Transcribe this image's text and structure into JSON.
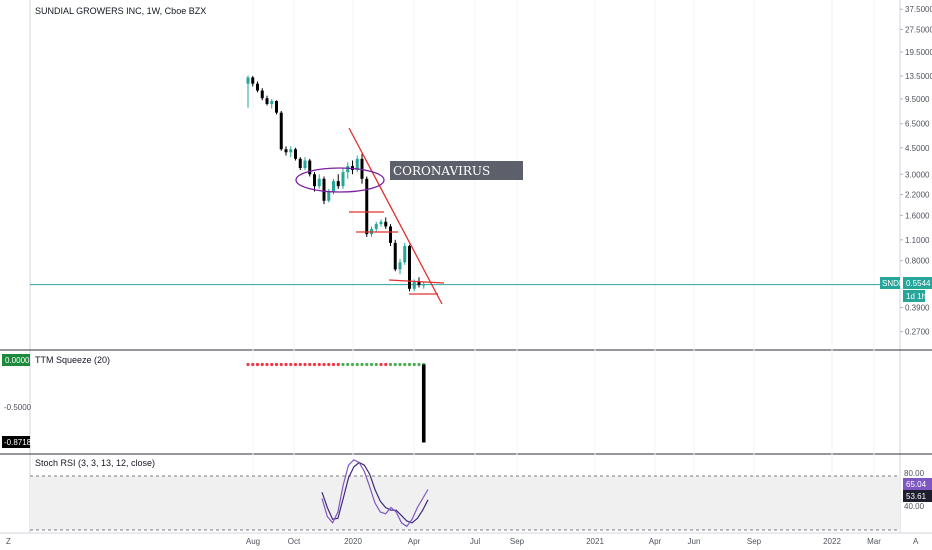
{
  "header": {
    "title": "SUNDIAL GROWERS INC, 1W, Cboe BZX"
  },
  "colors": {
    "up": "#26a69a",
    "down": "#000000",
    "trendline": "#e0312f",
    "ellipse": "#7b1fa2",
    "price_line": "#26a69a",
    "rsi_k": "#7e57c2",
    "rsi_d": "#3f2a78",
    "squeeze_red": "#f23645",
    "squeeze_green": "#4caf50"
  },
  "price_axis": {
    "ticks": [
      "37.5000",
      "27.5000",
      "19.5000",
      "13.5000",
      "9.5000",
      "6.5000",
      "4.5000",
      "3.0000",
      "2.2000",
      "1.6000",
      "1.1000",
      "0.8000",
      "0.3900",
      "0.2700"
    ],
    "last_price_label": "0.5544",
    "symbol_badge": "SNDL",
    "countdown_badge": "1d 1h"
  },
  "annotation": {
    "text": "CORONAVIRUS"
  },
  "time_axis": {
    "labels": [
      "Aug",
      "Oct",
      "2020",
      "Apr",
      "Jul",
      "Sep",
      "2021",
      "Apr",
      "Jun",
      "Sep",
      "2022",
      "Mar"
    ],
    "left_icon": "Z",
    "right_icon": "A"
  },
  "ttm_panel": {
    "title": "TTM Squeeze (20)",
    "value_badge": "0.0000",
    "axis_label": "-0.5000",
    "last_badge": "-0.8718"
  },
  "rsi_panel": {
    "title": "Stoch RSI (3, 3, 13, 12, close)",
    "upper_label": "80.00",
    "lower_label": "40.00",
    "k_badge": "65.04",
    "d_badge": "53.61"
  },
  "chart_data": [
    {
      "type": "candlestick",
      "title": "SUNDIAL GROWERS INC, 1W, Cboe BZX",
      "scale": "log",
      "ylim": [
        0.22,
        40
      ],
      "candles": [
        {
          "o": 12.0,
          "h": 13.6,
          "l": 8.3,
          "c": 13.2
        },
        {
          "o": 13.2,
          "h": 13.5,
          "l": 11.5,
          "c": 12.0
        },
        {
          "o": 12.0,
          "h": 12.4,
          "l": 10.5,
          "c": 10.8
        },
        {
          "o": 10.8,
          "h": 11.2,
          "l": 9.3,
          "c": 9.6
        },
        {
          "o": 9.6,
          "h": 10.0,
          "l": 8.6,
          "c": 8.8
        },
        {
          "o": 8.8,
          "h": 9.5,
          "l": 8.2,
          "c": 9.2
        },
        {
          "o": 9.2,
          "h": 9.3,
          "l": 7.5,
          "c": 7.7
        },
        {
          "o": 7.7,
          "h": 7.9,
          "l": 4.3,
          "c": 4.4
        },
        {
          "o": 4.4,
          "h": 4.6,
          "l": 4.0,
          "c": 4.2
        },
        {
          "o": 4.2,
          "h": 4.6,
          "l": 3.9,
          "c": 4.4
        },
        {
          "o": 4.4,
          "h": 4.5,
          "l": 3.7,
          "c": 3.8
        },
        {
          "o": 3.8,
          "h": 3.9,
          "l": 3.2,
          "c": 3.3
        },
        {
          "o": 3.3,
          "h": 3.9,
          "l": 3.2,
          "c": 3.7
        },
        {
          "o": 3.7,
          "h": 3.8,
          "l": 2.9,
          "c": 3.0
        },
        {
          "o": 3.0,
          "h": 3.1,
          "l": 2.3,
          "c": 2.5
        },
        {
          "o": 2.5,
          "h": 3.0,
          "l": 2.4,
          "c": 2.8
        },
        {
          "o": 2.8,
          "h": 2.9,
          "l": 1.9,
          "c": 2.0
        },
        {
          "o": 2.0,
          "h": 2.4,
          "l": 1.95,
          "c": 2.3
        },
        {
          "o": 2.3,
          "h": 2.8,
          "l": 2.2,
          "c": 2.7
        },
        {
          "o": 2.7,
          "h": 3.0,
          "l": 2.4,
          "c": 2.5
        },
        {
          "o": 2.5,
          "h": 3.3,
          "l": 2.4,
          "c": 3.1
        },
        {
          "o": 3.1,
          "h": 3.6,
          "l": 2.8,
          "c": 3.4
        },
        {
          "o": 3.4,
          "h": 3.7,
          "l": 3.0,
          "c": 3.2
        },
        {
          "o": 3.2,
          "h": 4.0,
          "l": 3.1,
          "c": 3.8
        },
        {
          "o": 3.8,
          "h": 4.1,
          "l": 2.6,
          "c": 2.8
        },
        {
          "o": 2.8,
          "h": 2.9,
          "l": 1.15,
          "c": 1.2
        },
        {
          "o": 1.2,
          "h": 1.35,
          "l": 1.15,
          "c": 1.3
        },
        {
          "o": 1.3,
          "h": 1.45,
          "l": 1.25,
          "c": 1.4
        },
        {
          "o": 1.4,
          "h": 1.5,
          "l": 1.35,
          "c": 1.45
        },
        {
          "o": 1.45,
          "h": 1.55,
          "l": 1.3,
          "c": 1.35
        },
        {
          "o": 1.35,
          "h": 1.4,
          "l": 1.0,
          "c": 1.05
        },
        {
          "o": 1.05,
          "h": 1.1,
          "l": 0.68,
          "c": 0.7
        },
        {
          "o": 0.7,
          "h": 0.82,
          "l": 0.65,
          "c": 0.78
        },
        {
          "o": 0.78,
          "h": 1.05,
          "l": 0.75,
          "c": 1.0
        },
        {
          "o": 1.0,
          "h": 1.02,
          "l": 0.5,
          "c": 0.52
        },
        {
          "o": 0.52,
          "h": 0.6,
          "l": 0.5,
          "c": 0.58
        },
        {
          "o": 0.58,
          "h": 0.62,
          "l": 0.53,
          "c": 0.55
        },
        {
          "o": 0.55,
          "h": 0.58,
          "l": 0.52,
          "c": 0.5544
        }
      ]
    },
    {
      "type": "bar",
      "title": "TTM Squeeze (20)",
      "values": [
        -0.8718
      ],
      "ylim": [
        -0.9,
        0.05
      ],
      "squeeze_dots": [
        "red",
        "red",
        "red",
        "red",
        "red",
        "red",
        "red",
        "red",
        "red",
        "red",
        "red",
        "red",
        "red",
        "red",
        "red",
        "red",
        "red",
        "red",
        "red",
        "red",
        "green",
        "green",
        "green",
        "green",
        "green",
        "green",
        "green",
        "green",
        "red",
        "red",
        "green",
        "green",
        "green",
        "green",
        "green",
        "green",
        "green",
        "green"
      ]
    },
    {
      "type": "line",
      "title": "Stoch RSI (3, 3, 13, 12, close)",
      "ylim": [
        20,
        100
      ],
      "bands": [
        80,
        20
      ],
      "series": [
        {
          "values": [
            55,
            35,
            28,
            40,
            70,
            92,
            98,
            95,
            85,
            68,
            50,
            40,
            38,
            45,
            40,
            28,
            24,
            32,
            45,
            55,
            65.04
          ]
        },
        {
          "values": [
            62,
            45,
            32,
            33,
            55,
            78,
            90,
            95,
            92,
            82,
            65,
            52,
            45,
            42,
            42,
            36,
            30,
            28,
            33,
            42,
            53.61
          ]
        }
      ]
    }
  ]
}
